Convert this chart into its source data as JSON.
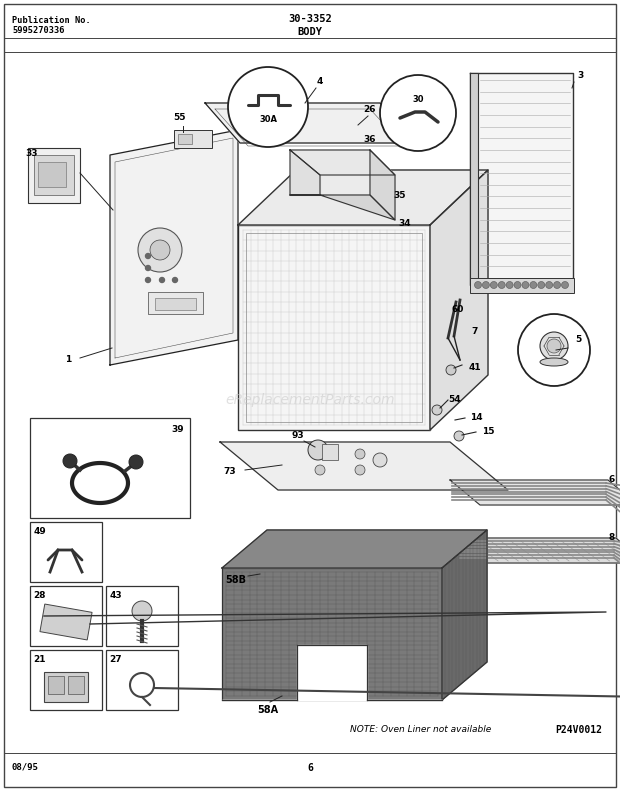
{
  "title_left_line1": "Publication No.",
  "title_left_line2": "5995270336",
  "title_center": "30-3352",
  "title_body": "BODY",
  "footer_left": "08/95",
  "footer_center": "6",
  "watermark": "eReplacementParts.com",
  "part_code": "P24V0012",
  "note_text": "NOTE: Oven Liner not available",
  "bg_color": "#ffffff",
  "figsize": [
    6.2,
    7.91
  ],
  "dpi": 100
}
